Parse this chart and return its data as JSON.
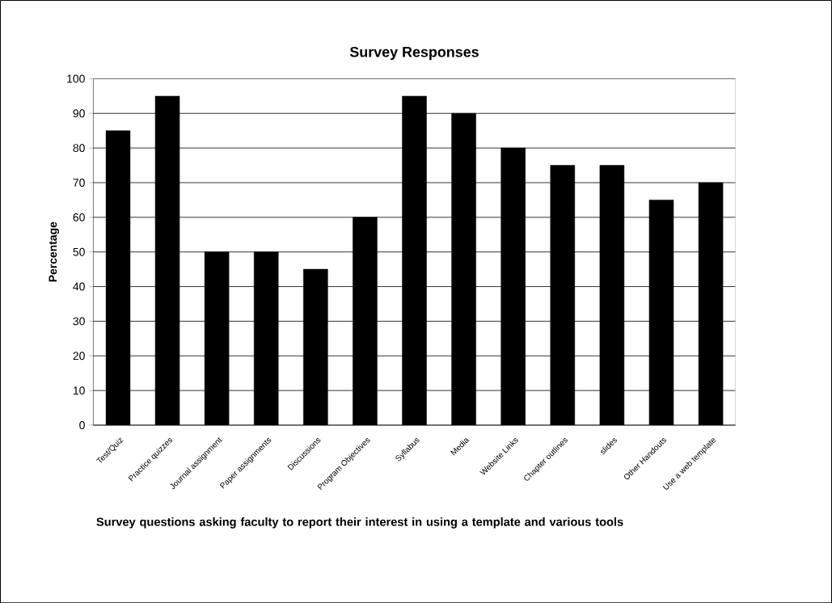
{
  "chart_data": {
    "type": "bar",
    "title": "Survey Responses",
    "xlabel": "Survey questions asking faculty to report their interest in using a template and various tools",
    "ylabel": "Percentage",
    "categories": [
      "Test/Quiz",
      "Practice quizzes",
      "Journal assignment",
      "Paper assignments",
      "Discussions",
      "Program Objectives",
      "Syllabus",
      "Media",
      "Website Links",
      "Chapter outlines",
      "slides",
      "Other Handouts",
      "Use a web template"
    ],
    "values": [
      85,
      95,
      50,
      50,
      45,
      60,
      95,
      90,
      80,
      75,
      75,
      65,
      70
    ],
    "color": "#000000",
    "ylim": [
      0,
      100
    ],
    "yticks": [
      0,
      10,
      20,
      30,
      40,
      50,
      60,
      70,
      80,
      90,
      100
    ],
    "grid": "y"
  }
}
